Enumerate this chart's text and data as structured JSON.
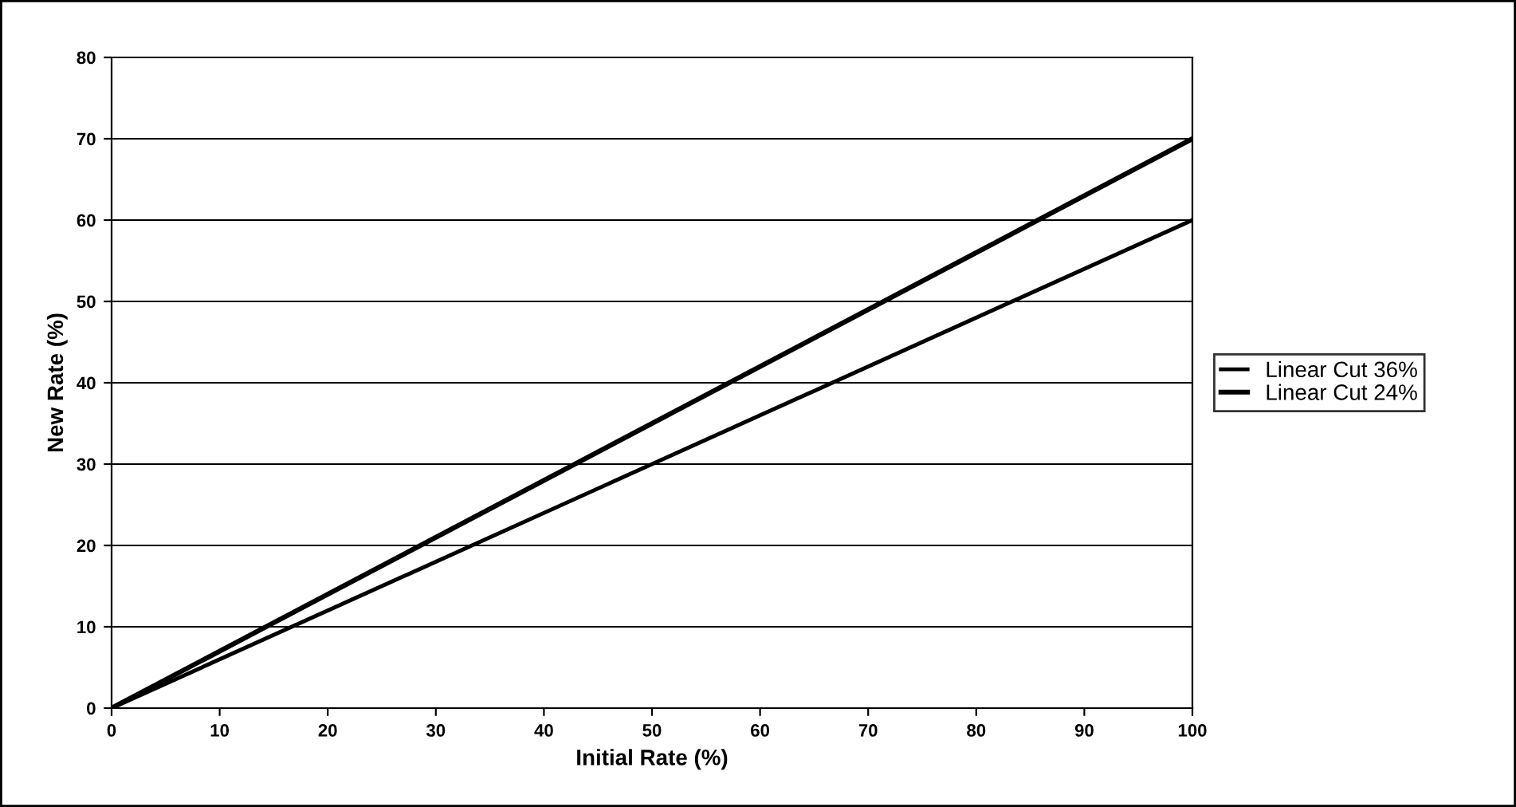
{
  "chart_data": {
    "type": "line",
    "xlabel": "Initial Rate (%)",
    "ylabel": "New Rate (%)",
    "x": [
      0,
      50,
      100
    ],
    "series": [
      {
        "name": "Linear Cut 36%",
        "color": "#000000",
        "values": [
          0,
          30,
          60
        ]
      },
      {
        "name": "Linear Cut 24%",
        "color": "#000000",
        "values": [
          0,
          35,
          70
        ]
      }
    ],
    "xlim": [
      0,
      100
    ],
    "xticks": [
      0,
      10,
      20,
      30,
      40,
      50,
      60,
      70,
      80,
      90,
      100
    ],
    "ylim": [
      0,
      80
    ],
    "yticks": [
      0,
      10,
      20,
      30,
      40,
      50,
      60,
      70,
      80
    ],
    "grid": "y",
    "legend": "right",
    "marker": "none",
    "line_style": "solid"
  }
}
